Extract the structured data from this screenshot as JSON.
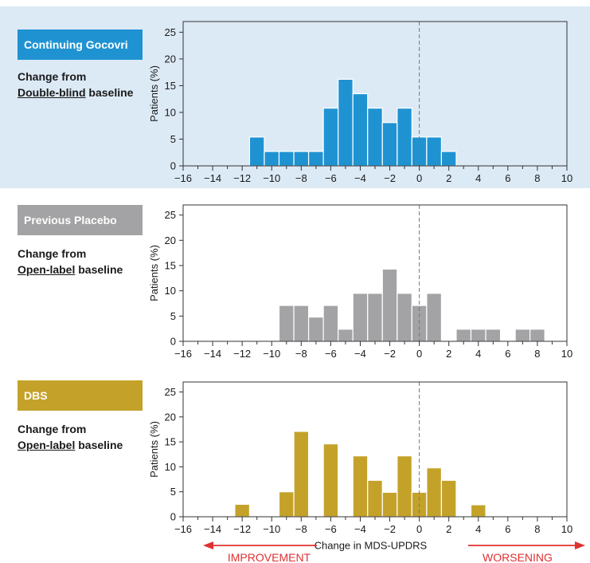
{
  "colors": {
    "gocovri": "#1f93d2",
    "placebo": "#a3a3a5",
    "dbs": "#c4a22a",
    "highlight_band": "#dceaf6",
    "arrow": "#e03030"
  },
  "panels": [
    {
      "label": "Continuing Gocovri",
      "change_prefix": "Change from",
      "baseline_underlined": "Double-blind",
      "baseline_suffix": " baseline"
    },
    {
      "label": "Previous Placebo",
      "change_prefix": "Change from",
      "baseline_underlined": "Open-label",
      "baseline_suffix": " baseline"
    },
    {
      "label": "DBS",
      "change_prefix": "Change from",
      "baseline_underlined": "Open-label",
      "baseline_suffix": " baseline"
    }
  ],
  "arrows": {
    "left": "IMPROVEMENT",
    "right": "WORSENING"
  },
  "chart_data": [
    {
      "type": "bar",
      "title": "Continuing Gocovri",
      "xlabel": "",
      "ylabel": "Patients (%)",
      "xlim": [
        -16,
        10
      ],
      "ylim": [
        0,
        27
      ],
      "yticks": [
        0,
        5,
        10,
        15,
        20,
        25
      ],
      "xticks": [
        -16,
        -14,
        -12,
        -10,
        -8,
        -6,
        -4,
        -2,
        0,
        2,
        4,
        6,
        8,
        10
      ],
      "bin_width": 1,
      "reference_line": 0,
      "x": [
        -11,
        -10,
        -9,
        -8,
        -7,
        -6,
        -5,
        -4,
        -3,
        -2,
        -1,
        0,
        1,
        2
      ],
      "values": [
        5.4,
        2.7,
        2.7,
        2.7,
        2.7,
        10.8,
        16.2,
        13.5,
        10.8,
        8.1,
        10.8,
        5.4,
        5.4,
        2.7
      ]
    },
    {
      "type": "bar",
      "title": "Previous Placebo",
      "xlabel": "",
      "ylabel": "Patients (%)",
      "xlim": [
        -16,
        10
      ],
      "ylim": [
        0,
        27
      ],
      "yticks": [
        0,
        5,
        10,
        15,
        20,
        25
      ],
      "xticks": [
        -16,
        -14,
        -12,
        -10,
        -8,
        -6,
        -4,
        -2,
        0,
        2,
        4,
        6,
        8,
        10
      ],
      "bin_width": 1,
      "reference_line": 0,
      "x": [
        -9,
        -8,
        -7,
        -6,
        -5,
        -4,
        -3,
        -2,
        -1,
        0,
        1,
        3,
        4,
        5,
        7,
        8
      ],
      "values": [
        7.1,
        7.1,
        4.8,
        7.1,
        2.4,
        9.5,
        9.5,
        14.3,
        9.5,
        7.1,
        9.5,
        2.4,
        2.4,
        2.4,
        2.4,
        2.4
      ]
    },
    {
      "type": "bar",
      "title": "DBS",
      "xlabel": "Change in MDS-UPDRS",
      "ylabel": "Patients (%)",
      "xlim": [
        -16,
        10
      ],
      "ylim": [
        0,
        27
      ],
      "yticks": [
        0,
        5,
        10,
        15,
        20,
        25
      ],
      "xticks": [
        -16,
        -14,
        -12,
        -10,
        -8,
        -6,
        -4,
        -2,
        0,
        2,
        4,
        6,
        8,
        10
      ],
      "bin_width": 1,
      "reference_line": 0,
      "x": [
        -12,
        -9,
        -8,
        -6,
        -4,
        -3,
        -2,
        -1,
        0,
        1,
        2,
        4
      ],
      "values": [
        2.5,
        5.0,
        17.1,
        14.6,
        12.2,
        7.3,
        4.9,
        12.2,
        4.9,
        9.8,
        7.3,
        2.4
      ]
    }
  ]
}
